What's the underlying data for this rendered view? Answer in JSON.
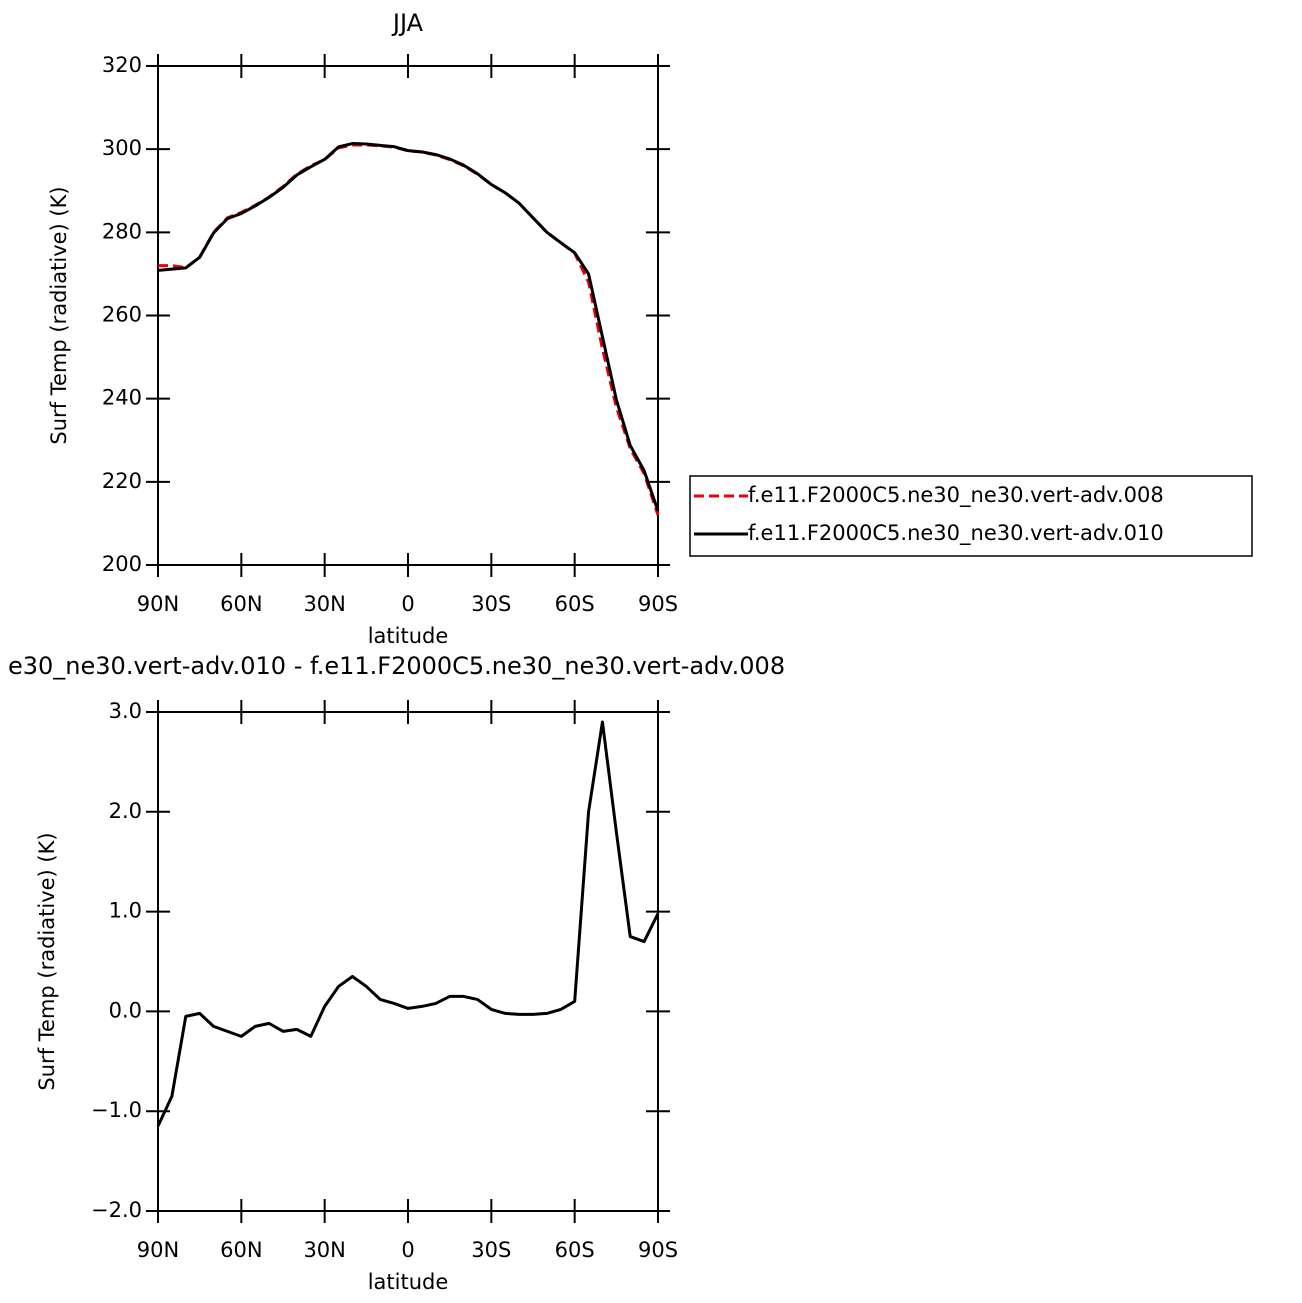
{
  "chart_data": [
    {
      "type": "line",
      "title": "JJA",
      "xlabel": "latitude",
      "ylabel": "Surf Temp (radiative) (K)",
      "x": [
        90,
        85,
        80,
        75,
        70,
        65,
        60,
        55,
        50,
        45,
        40,
        35,
        30,
        25,
        20,
        15,
        10,
        5,
        0,
        -5,
        -10,
        -15,
        -20,
        -25,
        -30,
        -35,
        -40,
        -45,
        -50,
        -55,
        -60,
        -65,
        -70,
        -75,
        -80,
        -85,
        -90
      ],
      "series": [
        {
          "name": "f.e11.F2000C5.ne30_ne30.vert-adv.008",
          "color": "#e8000b",
          "line_style": "dashed",
          "values": [
            272,
            272,
            271.5,
            274,
            280,
            283.5,
            284.8,
            286.5,
            288.5,
            291,
            294,
            296,
            297.5,
            300.3,
            301,
            301,
            300.8,
            300.5,
            299.6,
            299.3,
            298.6,
            297.5,
            296,
            294,
            291.5,
            289.5,
            287,
            283.5,
            280,
            277.5,
            275,
            268,
            252,
            238,
            228,
            222,
            212
          ]
        },
        {
          "name": "f.e11.F2000C5.ne30_ne30.vert-adv.010",
          "color": "#000000",
          "line_style": "solid",
          "values": [
            270.85,
            271.15,
            271.45,
            274,
            279.85,
            283.3,
            284.55,
            286.35,
            288.4,
            290.8,
            293.8,
            295.75,
            297.55,
            300.55,
            301.35,
            301.25,
            300.9,
            300.6,
            299.65,
            299.35,
            298.7,
            297.65,
            296.15,
            294.1,
            291.5,
            289.5,
            287,
            283.5,
            280,
            277.5,
            275.1,
            270,
            254.9,
            239.8,
            228.75,
            222.7,
            213
          ]
        }
      ],
      "xlim": [
        90,
        -90
      ],
      "xticks": [
        {
          "value": 90,
          "label": "90N"
        },
        {
          "value": 60,
          "label": "60N"
        },
        {
          "value": 30,
          "label": "30N"
        },
        0,
        {
          "value": -30,
          "label": "30S"
        },
        {
          "value": -60,
          "label": "60S"
        },
        {
          "value": -90,
          "label": "90S"
        }
      ],
      "ylim": [
        200,
        320
      ],
      "yticks": [
        200,
        220,
        240,
        260,
        280,
        300,
        320
      ],
      "legend": "right"
    },
    {
      "type": "line",
      "title": "e30_ne30.vert-adv.010 - f.e11.F2000C5.ne30_ne30.vert-adv.008",
      "xlabel": "latitude",
      "ylabel": "Surf Temp (radiative) (K)",
      "x": [
        90,
        85,
        80,
        75,
        70,
        65,
        60,
        55,
        50,
        45,
        40,
        35,
        30,
        25,
        20,
        15,
        10,
        5,
        0,
        -5,
        -10,
        -15,
        -20,
        -25,
        -30,
        -35,
        -40,
        -45,
        -50,
        -55,
        -60,
        -65,
        -70,
        -75,
        -80,
        -85,
        -90
      ],
      "color": "#000000",
      "values": [
        -1.15,
        -0.85,
        -0.05,
        -0.02,
        -0.15,
        -0.2,
        -0.25,
        -0.15,
        -0.12,
        -0.2,
        -0.18,
        -0.25,
        0.05,
        0.25,
        0.35,
        0.25,
        0.12,
        0.08,
        0.03,
        0.05,
        0.08,
        0.15,
        0.15,
        0.12,
        0.02,
        -0.02,
        -0.03,
        -0.03,
        -0.02,
        0.02,
        0.1,
        2.0,
        2.9,
        1.8,
        0.75,
        0.7,
        0.98
      ],
      "xlim": [
        90,
        -90
      ],
      "xticks": [
        {
          "value": 90,
          "label": "90N"
        },
        {
          "value": 60,
          "label": "60N"
        },
        {
          "value": 30,
          "label": "30N"
        },
        0,
        {
          "value": -30,
          "label": "30S"
        },
        {
          "value": -60,
          "label": "60S"
        },
        {
          "value": -90,
          "label": "90S"
        }
      ],
      "ylim": [
        -2,
        3
      ],
      "yticks": [
        {
          "value": -2,
          "label": "−2.0"
        },
        {
          "value": -1,
          "label": "−1.0"
        },
        {
          "value": 0,
          "label": "0.0"
        },
        {
          "value": 1,
          "label": "1.0"
        },
        {
          "value": 2,
          "label": "2.0"
        },
        {
          "value": 3,
          "label": "3.0"
        }
      ]
    }
  ]
}
